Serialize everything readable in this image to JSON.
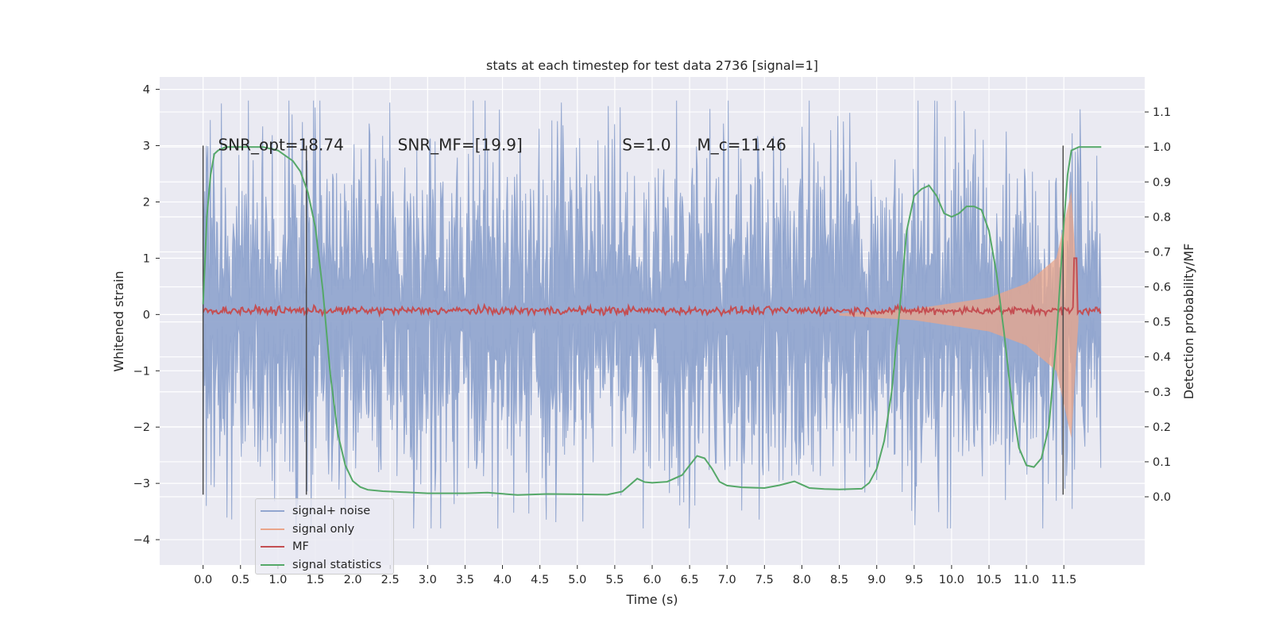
{
  "chart_data": {
    "type": "line",
    "title": "stats at each timestep for test data 2736 [signal=1]",
    "xlabel": "Time (s)",
    "ylabel_left": "Whitened strain",
    "ylabel_right": "Detection probability/MF",
    "xlim": [
      -0.58,
      12.58
    ],
    "ylim_left": [
      -4.45,
      4.22
    ],
    "ylim_right": [
      -0.195,
      1.2
    ],
    "xticks": [
      "0.0",
      "0.5",
      "1.0",
      "1.5",
      "2.0",
      "2.5",
      "3.0",
      "3.5",
      "4.0",
      "4.5",
      "5.0",
      "5.5",
      "6.0",
      "6.5",
      "7.0",
      "7.5",
      "8.0",
      "8.5",
      "9.0",
      "9.5",
      "10.0",
      "10.5",
      "11.0",
      "11.5"
    ],
    "yticks_left": [
      "4",
      "3",
      "2",
      "1",
      "0",
      "−1",
      "−2",
      "−3",
      "−4"
    ],
    "yticks_right": [
      "1.1",
      "1.0",
      "0.9",
      "0.8",
      "0.7",
      "0.6",
      "0.5",
      "0.4",
      "0.3",
      "0.2",
      "0.1",
      "0.0"
    ],
    "grid": true,
    "legend_position": "lower-left",
    "annotations": [
      {
        "text": "SNR_opt=18.74",
        "x": 0.2,
        "y": 3.0
      },
      {
        "text": "SNR_MF=[19.9]",
        "x": 2.6,
        "y": 3.0
      },
      {
        "text": "S=1.0",
        "x": 5.6,
        "y": 3.0
      },
      {
        "text": "M_c=11.46",
        "x": 6.6,
        "y": 3.0
      }
    ],
    "vlines": [
      0.0,
      1.38,
      11.49
    ],
    "series": [
      {
        "name": "signal+ noise",
        "color": "#92a6cf",
        "type": "noise-band",
        "x_range": [
          0.0,
          12.0
        ],
        "typical_amplitude": 1.15,
        "peak_amplitude": 3.8
      },
      {
        "name": "signal only",
        "color": "#eaa58a",
        "type": "chirp",
        "x_range": [
          8.5,
          11.7
        ],
        "envelope": [
          [
            8.5,
            0.02
          ],
          [
            9.5,
            0.1
          ],
          [
            10.5,
            0.3
          ],
          [
            11.0,
            0.55
          ],
          [
            11.4,
            1.0
          ],
          [
            11.6,
            2.2
          ],
          [
            11.7,
            0.0
          ]
        ]
      },
      {
        "name": "MF",
        "color": "#c44e52",
        "type": "line",
        "x_range": [
          0.0,
          12.0
        ],
        "baseline": 0.07,
        "peak": {
          "x": 11.65,
          "y": 1.0
        }
      },
      {
        "name": "signal statistics",
        "color": "#55a868",
        "type": "line",
        "axis": "right",
        "x": [
          0.0,
          0.05,
          0.1,
          0.15,
          0.2,
          0.3,
          0.5,
          0.8,
          1.0,
          1.2,
          1.3,
          1.4,
          1.5,
          1.6,
          1.7,
          1.8,
          1.9,
          2.0,
          2.1,
          2.2,
          2.4,
          2.7,
          3.0,
          3.5,
          3.8,
          4.2,
          4.6,
          5.0,
          5.4,
          5.6,
          5.8,
          5.9,
          6.0,
          6.2,
          6.4,
          6.5,
          6.6,
          6.7,
          6.8,
          6.9,
          7.0,
          7.2,
          7.5,
          7.7,
          7.9,
          8.1,
          8.3,
          8.5,
          8.8,
          8.9,
          9.0,
          9.1,
          9.2,
          9.3,
          9.4,
          9.5,
          9.6,
          9.7,
          9.8,
          9.9,
          10.0,
          10.1,
          10.2,
          10.3,
          10.4,
          10.5,
          10.6,
          10.7,
          10.8,
          10.9,
          11.0,
          11.1,
          11.2,
          11.3,
          11.4,
          11.5,
          11.55,
          11.6,
          11.7,
          11.8,
          11.9,
          12.0
        ],
        "y": [
          0.55,
          0.8,
          0.92,
          0.98,
          0.99,
          1.0,
          1.0,
          1.0,
          0.99,
          0.96,
          0.93,
          0.87,
          0.77,
          0.59,
          0.35,
          0.18,
          0.09,
          0.045,
          0.028,
          0.02,
          0.016,
          0.013,
          0.01,
          0.01,
          0.012,
          0.005,
          0.008,
          0.007,
          0.006,
          0.015,
          0.052,
          0.042,
          0.04,
          0.043,
          0.062,
          0.09,
          0.117,
          0.11,
          0.08,
          0.043,
          0.032,
          0.027,
          0.025,
          0.033,
          0.044,
          0.025,
          0.022,
          0.021,
          0.023,
          0.04,
          0.08,
          0.16,
          0.3,
          0.52,
          0.76,
          0.86,
          0.88,
          0.89,
          0.86,
          0.81,
          0.8,
          0.81,
          0.83,
          0.83,
          0.82,
          0.76,
          0.64,
          0.47,
          0.28,
          0.14,
          0.09,
          0.085,
          0.11,
          0.2,
          0.45,
          0.78,
          0.92,
          0.99,
          1.0,
          1.0,
          1.0,
          1.0
        ]
      }
    ]
  }
}
